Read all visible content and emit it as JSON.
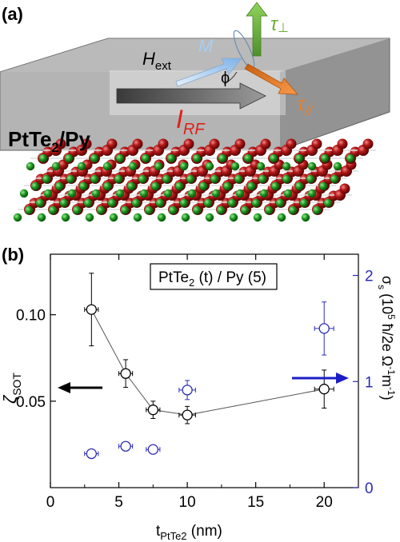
{
  "panel_a": {
    "label": "(a)",
    "sample_main": "PtTe",
    "sample_sub": "2",
    "sample_tail": "/Py",
    "h_main": "H",
    "h_sub": "ext",
    "m_label": "M",
    "phi_label": "ϕ",
    "i_main": "I",
    "i_sub": "RF",
    "tau_perp_main": "τ",
    "tau_perp_sub": "⊥",
    "tau_par_main": "τ",
    "tau_par_sub": "//",
    "colors": {
      "slab": "#8c8c8c",
      "pt_atom": "#9b0e0e",
      "te_atom": "#1f8a1f",
      "current_text": "#e0201a",
      "m_arrow": "#a9cdf0",
      "tau_perp": "#6fae3a",
      "tau_par": "#ef7d22"
    }
  },
  "chart_data": {
    "type": "scatter",
    "panel_label": "(b)",
    "legend_main": "PtTe",
    "legend_sub": "2",
    "legend_tail": " (t) / Py (5)",
    "xlabel_main": "t",
    "xlabel_sub": "PtTe2",
    "xlabel_tail": " (nm)",
    "ylabel_left_main": "ζ",
    "ylabel_left_sub": "SOT",
    "ylabel_right_main": "σ",
    "ylabel_right_sub": "s",
    "ylabel_right_tail": "(10",
    "ylabel_right_exp": "5",
    "ylabel_right_rest": " ħ/2e Ω",
    "ylabel_right_exp2": "-1",
    "ylabel_right_rest2": "m",
    "ylabel_right_exp3": "-1",
    "ylabel_right_close": ")",
    "xlim": [
      0,
      22.5
    ],
    "ylim_left": [
      0.0,
      0.135
    ],
    "ylim_right": [
      0.0,
      2.2
    ],
    "x_ticks": [
      0,
      5,
      10,
      15,
      20
    ],
    "x_tick_labels": [
      "0",
      "5",
      "10",
      "15",
      "20"
    ],
    "left_ticks": [
      0.05,
      0.1
    ],
    "left_tick_labels": [
      "0.05",
      "0.10"
    ],
    "right_ticks": [
      0,
      1,
      2
    ],
    "right_tick_labels": [
      "0",
      "1",
      "2"
    ],
    "series": [
      {
        "axis": "left",
        "color": "#000000",
        "connected": true,
        "points": [
          {
            "x": 3.0,
            "y": 0.103,
            "xerr": 0.5,
            "yerr": 0.021
          },
          {
            "x": 5.5,
            "y": 0.066,
            "xerr": 0.5,
            "yerr": 0.008
          },
          {
            "x": 7.5,
            "y": 0.045,
            "xerr": 0.5,
            "yerr": 0.005
          },
          {
            "x": 10.0,
            "y": 0.042,
            "xerr": 0.6,
            "yerr": 0.005
          },
          {
            "x": 20.0,
            "y": 0.057,
            "xerr": 0.7,
            "yerr": 0.011
          }
        ]
      },
      {
        "axis": "right",
        "color": "#2b2bb5",
        "connected": false,
        "points": [
          {
            "x": 3.0,
            "y": 0.32,
            "xerr": 0.5,
            "yerr": 0.0
          },
          {
            "x": 5.5,
            "y": 0.39,
            "xerr": 0.5,
            "yerr": 0.0
          },
          {
            "x": 7.5,
            "y": 0.36,
            "xerr": 0.5,
            "yerr": 0.0
          },
          {
            "x": 10.0,
            "y": 0.92,
            "xerr": 0.6,
            "yerr": 0.09
          },
          {
            "x": 20.0,
            "y": 1.5,
            "xerr": 0.7,
            "yerr": 0.25
          }
        ]
      }
    ],
    "arrow_left_color": "#000000",
    "arrow_right_color": "#1d1dc8"
  }
}
